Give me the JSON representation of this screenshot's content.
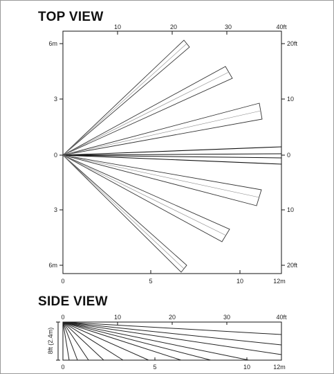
{
  "top_view": {
    "title": "TOP VIEW",
    "top_axis_ticks": [
      "10",
      "20",
      "30",
      "40ft"
    ],
    "bottom_axis_ticks": [
      "0",
      "5",
      "10",
      "12m"
    ],
    "left_axis_ticks": [
      "6m",
      "3",
      "0",
      "3",
      "6m"
    ],
    "right_axis_ticks": [
      "20ft",
      "10",
      "0",
      "10",
      "20ft"
    ]
  },
  "side_view": {
    "title": "SIDE VIEW",
    "top_axis_ticks": [
      "0",
      "10",
      "20",
      "30",
      "40ft"
    ],
    "bottom_axis_ticks": [
      "0",
      "5",
      "10",
      "12m"
    ],
    "height_label": "8ft (2.4m)"
  }
}
